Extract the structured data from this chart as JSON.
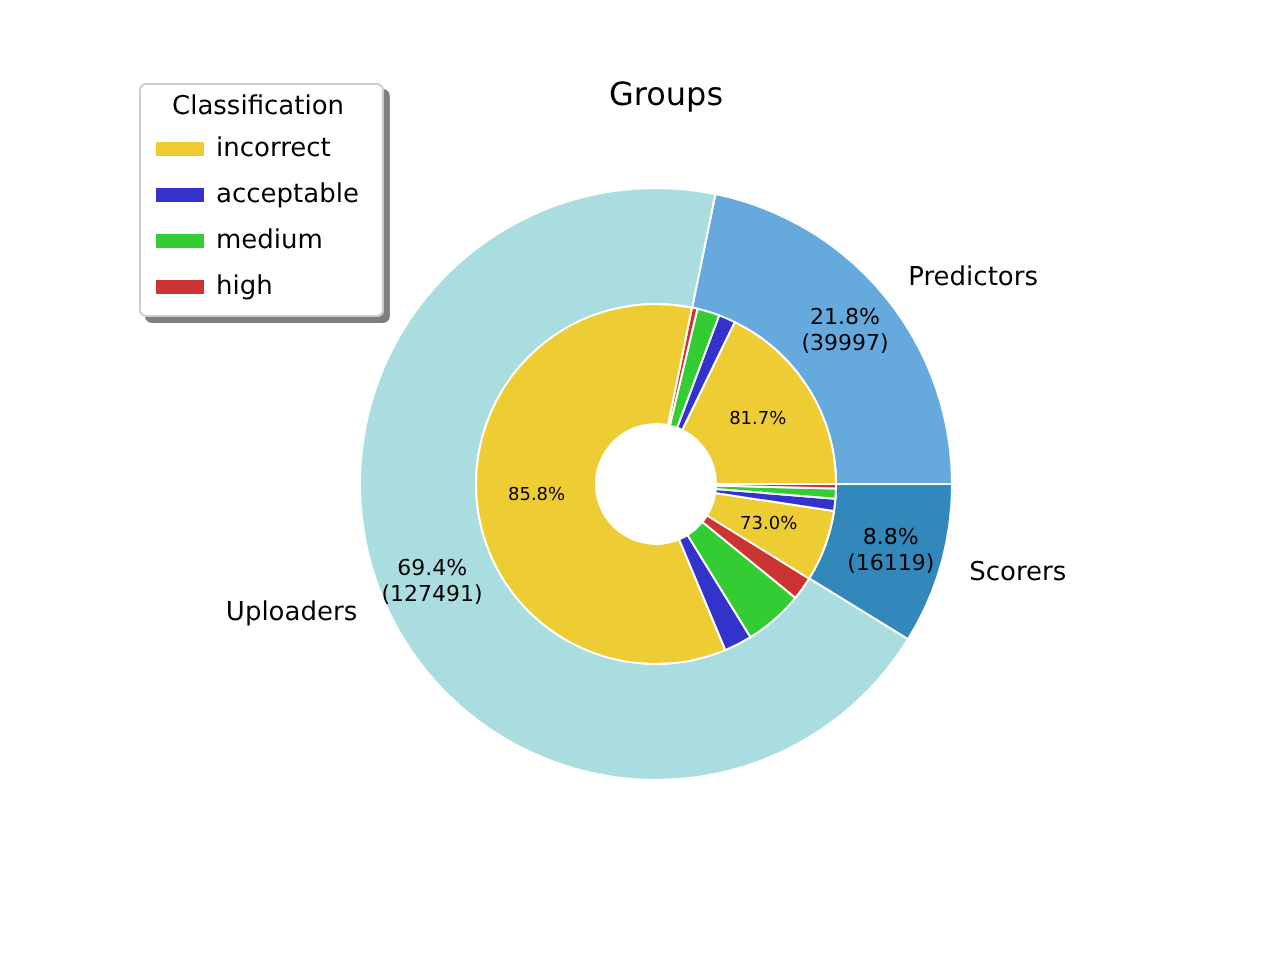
{
  "chart_data": [
    {
      "type": "donut",
      "title": "Groups",
      "categories": [
        "Predictors",
        "Uploaders",
        "Scorers"
      ],
      "values": [
        39997,
        127491,
        16119
      ],
      "colors": [
        "#66aadd",
        "#aadddf",
        "#3388bb"
      ],
      "value_labels": [
        "21.8%\n(39997)",
        "69.4%\n(127491)",
        "8.8%\n(16119)"
      ]
    },
    {
      "type": "donut",
      "legend_title": "Classification",
      "legend": "top left",
      "categories": [
        "incorrect",
        "acceptable",
        "medium",
        "high",
        null,
        null,
        null,
        null,
        null,
        null,
        null,
        null
      ],
      "values": [
        17.8,
        1.5,
        2.0,
        0.5,
        59.5,
        2.5,
        5.3,
        2.1,
        6.4,
        1.1,
        0.9,
        0.4
      ],
      "colors": [
        "#eecc33",
        "#3333cc",
        "#33cc33",
        "#cc3333",
        "#eecc33",
        "#3333cc",
        "#33cc33",
        "#cc3333",
        "#eecc33",
        "#3333cc",
        "#33cc33",
        "#cc3333"
      ],
      "annotations": [
        "81.7%",
        "85.8%",
        "73.0%"
      ]
    }
  ]
}
